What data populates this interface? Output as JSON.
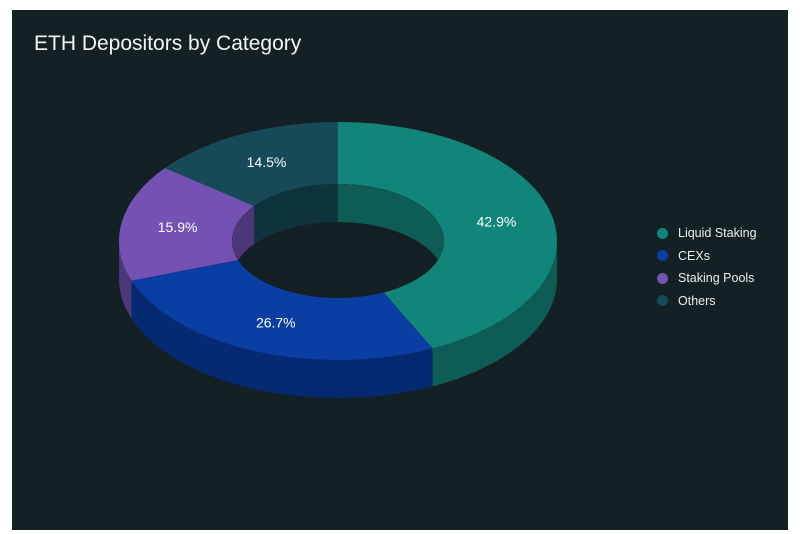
{
  "chart_data": {
    "type": "pie",
    "title": "ETH Depositors by Category",
    "style": "3d-donut",
    "legend_position": "right",
    "slices": [
      {
        "label": "Liquid Staking",
        "value": 42.9,
        "value_label": "42.9%",
        "color": "#12857a",
        "side_color": "#0d5d56"
      },
      {
        "label": "CEXs",
        "value": 26.7,
        "value_label": "26.7%",
        "color": "#0a3ea3",
        "side_color": "#062a72"
      },
      {
        "label": "Staking Pools",
        "value": 15.9,
        "value_label": "15.9%",
        "color": "#7352b3",
        "side_color": "#4d367a"
      },
      {
        "label": "Others",
        "value": 14.5,
        "value_label": "14.5%",
        "color": "#174a58",
        "side_color": "#0f333d"
      }
    ]
  },
  "colors": {
    "background": "#142124",
    "title_text": "#f2f4f4",
    "label_text": "#ffffff"
  }
}
